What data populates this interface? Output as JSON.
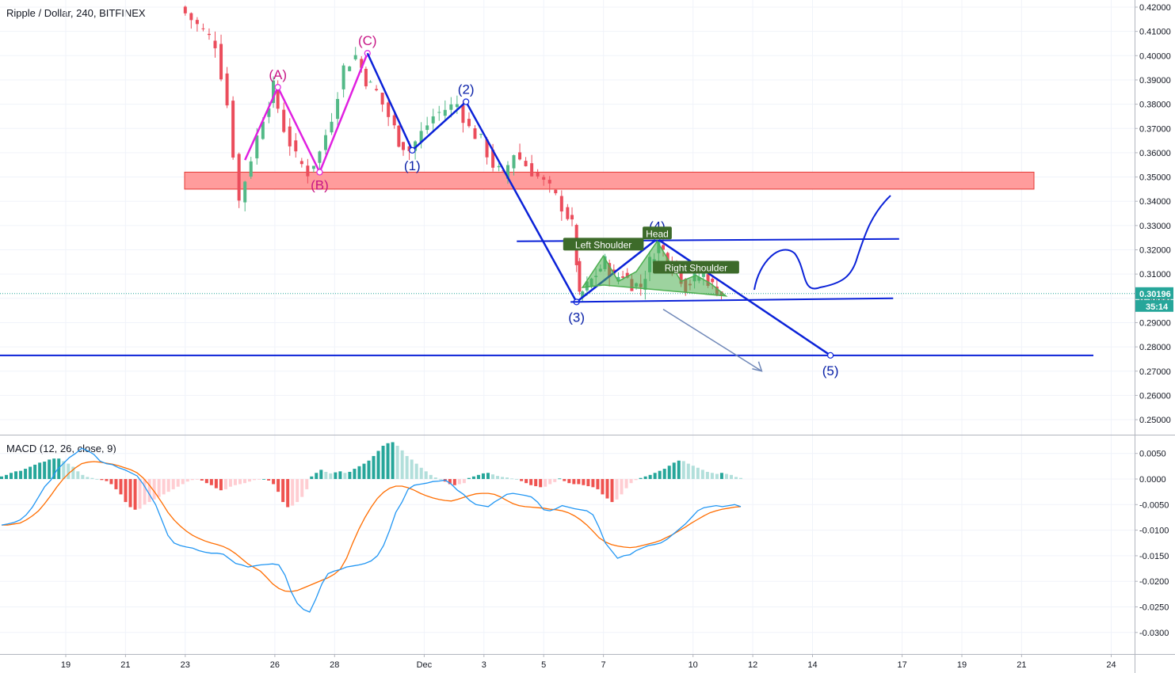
{
  "header": {
    "symbol_title": "Ripple / Dollar, 240, BITFINEX",
    "macd_title": "MACD (12, 26, close, 9)"
  },
  "colors": {
    "bull": "#53b987",
    "bear": "#eb4d5c",
    "pattern_blue": "#0b22d8",
    "abc_magenta": "#e020e0",
    "resistance_zone": "#ff9c9c",
    "macd_line": "#2196f3",
    "signal_line": "#ff6d00",
    "hist_pos_strong": "#26a69a",
    "hist_pos_weak": "#b2dfdb",
    "hist_neg_strong": "#ef5350",
    "hist_neg_weak": "#ffcdd2",
    "price_tag": "#26a69a"
  },
  "chart_data": [
    {
      "type": "candlestick",
      "title": "Ripple / Dollar, 240, BITFINEX",
      "x_tick_labels": [
        "19",
        "21",
        "23",
        "26",
        "28",
        "Dec",
        "3",
        "5",
        "7",
        "10",
        "12",
        "14",
        "17",
        "19",
        "21",
        "24"
      ],
      "y_tick_labels": [
        "0.42000",
        "0.41000",
        "0.40000",
        "0.39000",
        "0.38000",
        "0.37000",
        "0.36000",
        "0.35000",
        "0.34000",
        "0.33000",
        "0.32000",
        "0.31000",
        "0.30000",
        "0.29000",
        "0.28000",
        "0.27000",
        "0.26000",
        "0.25000"
      ],
      "y_ticks": [
        0.42,
        0.41,
        0.4,
        0.39,
        0.38,
        0.37,
        0.36,
        0.35,
        0.34,
        0.33,
        0.32,
        0.31,
        0.3,
        0.29,
        0.28,
        0.27,
        0.26,
        0.25
      ],
      "ylim": [
        0.244,
        0.4225
      ],
      "last_price": 0.30196,
      "last_price_label": "0.30196",
      "countdown_label": "35:14",
      "price_path": [
        [
          23.0,
          0.42
        ],
        [
          23.4,
          0.415
        ],
        [
          23.8,
          0.41
        ],
        [
          24.2,
          0.405
        ],
        [
          24.6,
          0.38
        ],
        [
          25.0,
          0.34
        ],
        [
          25.4,
          0.358
        ],
        [
          25.8,
          0.375
        ],
        [
          26.1,
          0.387
        ],
        [
          26.5,
          0.37
        ],
        [
          26.9,
          0.358
        ],
        [
          27.3,
          0.352
        ],
        [
          27.7,
          0.36
        ],
        [
          28.1,
          0.375
        ],
        [
          28.5,
          0.395
        ],
        [
          28.9,
          0.4
        ],
        [
          29.2,
          0.39
        ],
        [
          29.6,
          0.385
        ],
        [
          30.0,
          0.375
        ],
        [
          30.3,
          0.365
        ],
        [
          30.7,
          0.361
        ],
        [
          31.1,
          0.368
        ],
        [
          31.5,
          0.375
        ],
        [
          31.9,
          0.378
        ],
        [
          32.3,
          0.38
        ],
        [
          32.7,
          0.37
        ],
        [
          33.1,
          0.365
        ],
        [
          33.5,
          0.355
        ],
        [
          33.8,
          0.35
        ],
        [
          34.2,
          0.36
        ],
        [
          34.6,
          0.355
        ],
        [
          35.0,
          0.35
        ],
        [
          35.4,
          0.345
        ],
        [
          35.8,
          0.338
        ],
        [
          36.1,
          0.33
        ],
        [
          36.3,
          0.3
        ],
        [
          36.6,
          0.305
        ],
        [
          36.9,
          0.31
        ],
        [
          37.2,
          0.315
        ],
        [
          37.5,
          0.308
        ],
        [
          37.8,
          0.31
        ],
        [
          38.1,
          0.306
        ],
        [
          38.4,
          0.305
        ],
        [
          38.7,
          0.315
        ],
        [
          39.0,
          0.323
        ],
        [
          39.3,
          0.316
        ],
        [
          39.6,
          0.312
        ],
        [
          39.9,
          0.305
        ],
        [
          40.2,
          0.308
        ],
        [
          40.5,
          0.31
        ],
        [
          40.8,
          0.305
        ],
        [
          41.1,
          0.302
        ]
      ],
      "annotations": {
        "resistance_zone": [
          0.345,
          0.352
        ],
        "target_line": 0.2765,
        "abc_points": [
          {
            "label": "(A)",
            "x": 26.1,
            "y": 0.387
          },
          {
            "label": "(B)",
            "x": 27.5,
            "y": 0.352
          },
          {
            "label": "(C)",
            "x": 29.1,
            "y": 0.401
          }
        ],
        "wave_points": [
          {
            "label": "(1)",
            "x": 30.6,
            "y": 0.361
          },
          {
            "label": "(2)",
            "x": 32.4,
            "y": 0.381
          },
          {
            "label": "(3)",
            "x": 36.1,
            "y": 0.2985
          },
          {
            "label": "(4)",
            "x": 38.8,
            "y": 0.3245
          },
          {
            "label": "(5)",
            "x": 44.6,
            "y": 0.2765
          }
        ],
        "neckline_top": [
          [
            34.1,
            0.3235
          ],
          [
            46.9,
            0.3245
          ]
        ],
        "neckline_bottom": [
          [
            35.9,
            0.2985
          ],
          [
            46.7,
            0.3
          ]
        ],
        "hs_labels": [
          {
            "label": "Left Shoulder",
            "x": 37.0,
            "y": 0.322
          },
          {
            "label": "Head",
            "x": 38.8,
            "y": 0.3266
          },
          {
            "label": "Right Shoulder",
            "x": 40.1,
            "y": 0.3125
          }
        ]
      }
    },
    {
      "type": "macd",
      "title": "MACD (12, 26, close, 9)",
      "y_tick_labels": [
        "0.0050",
        "0.0000",
        "-0.0050",
        "-0.0100",
        "-0.0150",
        "-0.0200",
        "-0.0250",
        "-0.0300"
      ],
      "y_ticks": [
        0.005,
        0.0,
        -0.005,
        -0.01,
        -0.015,
        -0.02,
        -0.025,
        -0.03
      ],
      "ylim": [
        -0.0336,
        0.0058
      ],
      "histogram": [
        0.0005,
        0.0008,
        0.0012,
        0.0015,
        0.0016,
        0.002,
        0.0024,
        0.0028,
        0.0032,
        0.0034,
        0.0038,
        0.004,
        0.004,
        0.0035,
        0.003,
        0.0024,
        0.0015,
        0.0008,
        0.0004,
        0.0002,
        0.0,
        -0.0002,
        -0.0004,
        -0.001,
        -0.002,
        -0.003,
        -0.0045,
        -0.0055,
        -0.006,
        -0.0058,
        -0.005,
        -0.0045,
        -0.004,
        -0.0035,
        -0.003,
        -0.0025,
        -0.002,
        -0.0015,
        -0.001,
        -0.0005,
        -0.0002,
        -0.0001,
        -0.0003,
        -0.0008,
        -0.0012,
        -0.0018,
        -0.0022,
        -0.002,
        -0.0015,
        -0.0012,
        -0.001,
        -0.0008,
        -0.0005,
        -0.0002,
        -0.0001,
        0.0,
        -0.0003,
        -0.001,
        -0.0025,
        -0.0045,
        -0.0055,
        -0.0052,
        -0.0045,
        -0.0035,
        -0.002,
        0.0005,
        0.0012,
        0.0018,
        0.0014,
        0.0011,
        0.0013,
        0.0015,
        0.0012,
        0.0014,
        0.002,
        0.0025,
        0.003,
        0.0036,
        0.0045,
        0.0055,
        0.0065,
        0.007,
        0.0072,
        0.0065,
        0.0056,
        0.0045,
        0.0038,
        0.003,
        0.0022,
        0.0015,
        0.0008,
        0.0003,
        0.0,
        -0.0005,
        -0.001,
        -0.0012,
        -0.001,
        -0.0008,
        0.0002,
        0.0005,
        0.0008,
        0.0011,
        0.0012,
        0.0009,
        0.0006,
        0.0004,
        0.0003,
        0.0001,
        0.0,
        -0.0004,
        -0.0008,
        -0.0012,
        -0.0014,
        -0.0016,
        -0.0015,
        -0.001,
        -0.0006,
        0.0001,
        -0.0004,
        -0.0008,
        -0.001,
        -0.001,
        -0.0012,
        -0.0014,
        -0.0016,
        -0.002,
        -0.003,
        -0.0038,
        -0.0045,
        -0.004,
        -0.003,
        -0.0018,
        -0.0008,
        -0.0002,
        0.0002,
        0.0005,
        0.0008,
        0.0012,
        0.0016,
        0.002,
        0.0026,
        0.0032,
        0.0036,
        0.0035,
        0.003,
        0.0026,
        0.0022,
        0.0018,
        0.0014,
        0.0012,
        0.001,
        0.0012,
        0.001,
        0.0008,
        0.0004,
        0.0002
      ],
      "macd_line": [
        -0.009,
        -0.0088,
        -0.0085,
        -0.008,
        -0.007,
        -0.0055,
        -0.0035,
        -0.0015,
        -0.0002,
        0.0018,
        0.003,
        0.0042,
        0.005,
        0.006,
        0.0055,
        0.0048,
        0.0035,
        0.003,
        0.0028,
        0.0022,
        0.0018,
        0.0012,
        0.0006,
        -0.001,
        -0.003,
        -0.005,
        -0.008,
        -0.011,
        -0.0125,
        -0.013,
        -0.0133,
        -0.0135,
        -0.014,
        -0.0143,
        -0.0145,
        -0.0145,
        -0.0147,
        -0.0156,
        -0.0165,
        -0.0168,
        -0.0172,
        -0.017,
        -0.0168,
        -0.0167,
        -0.0166,
        -0.0168,
        -0.0188,
        -0.022,
        -0.0243,
        -0.0255,
        -0.026,
        -0.0235,
        -0.0205,
        -0.0185,
        -0.018,
        -0.0177,
        -0.0172,
        -0.017,
        -0.0168,
        -0.0165,
        -0.016,
        -0.015,
        -0.013,
        -0.01,
        -0.0065,
        -0.0045,
        -0.002,
        -0.0012,
        -0.001,
        -0.0008,
        -0.0005,
        -0.0004,
        -0.0002,
        -0.001,
        -0.0022,
        -0.003,
        -0.0042,
        -0.005,
        -0.0052,
        -0.0054,
        -0.0045,
        -0.0038,
        -0.003,
        -0.0028,
        -0.003,
        -0.0032,
        -0.0035,
        -0.0045,
        -0.006,
        -0.0062,
        -0.0058,
        -0.0052,
        -0.0055,
        -0.0058,
        -0.006,
        -0.0062,
        -0.007,
        -0.0095,
        -0.0125,
        -0.014,
        -0.0155,
        -0.015,
        -0.0148,
        -0.014,
        -0.0135,
        -0.013,
        -0.0128,
        -0.0125,
        -0.0118,
        -0.0108,
        -0.0098,
        -0.0088,
        -0.0075,
        -0.0062,
        -0.0056,
        -0.0054,
        -0.0052,
        -0.0054,
        -0.0052,
        -0.005,
        -0.0054
      ],
      "signal_line": [
        -0.009,
        -0.009,
        -0.0088,
        -0.0086,
        -0.008,
        -0.0072,
        -0.0062,
        -0.0048,
        -0.0032,
        -0.0015,
        0.0,
        0.0012,
        0.0022,
        0.003,
        0.0033,
        0.0034,
        0.0033,
        0.0031,
        0.0029,
        0.0026,
        0.0022,
        0.0018,
        0.0012,
        0.0002,
        -0.0012,
        -0.0028,
        -0.0046,
        -0.0065,
        -0.008,
        -0.0092,
        -0.0102,
        -0.011,
        -0.0116,
        -0.0121,
        -0.0125,
        -0.0128,
        -0.0132,
        -0.0138,
        -0.0146,
        -0.0156,
        -0.0166,
        -0.0173,
        -0.018,
        -0.0192,
        -0.0205,
        -0.0214,
        -0.0219,
        -0.022,
        -0.0218,
        -0.0213,
        -0.0208,
        -0.0203,
        -0.0198,
        -0.0193,
        -0.0186,
        -0.0176,
        -0.0155,
        -0.0125,
        -0.0098,
        -0.0075,
        -0.0055,
        -0.0038,
        -0.0026,
        -0.0018,
        -0.0014,
        -0.0014,
        -0.0017,
        -0.0022,
        -0.0028,
        -0.0033,
        -0.0037,
        -0.004,
        -0.0042,
        -0.0043,
        -0.004,
        -0.0036,
        -0.0032,
        -0.0029,
        -0.0028,
        -0.0028,
        -0.003,
        -0.0035,
        -0.0042,
        -0.0048,
        -0.0052,
        -0.0054,
        -0.0055,
        -0.0056,
        -0.0057,
        -0.0059,
        -0.006,
        -0.0062,
        -0.0066,
        -0.0072,
        -0.008,
        -0.009,
        -0.0102,
        -0.0115,
        -0.0123,
        -0.0128,
        -0.0131,
        -0.0133,
        -0.0134,
        -0.0133,
        -0.013,
        -0.0127,
        -0.0124,
        -0.012,
        -0.0114,
        -0.0108,
        -0.0101,
        -0.0094,
        -0.0086,
        -0.0079,
        -0.0072,
        -0.0066,
        -0.0062,
        -0.0059,
        -0.0057,
        -0.0055,
        -0.0054
      ]
    }
  ]
}
